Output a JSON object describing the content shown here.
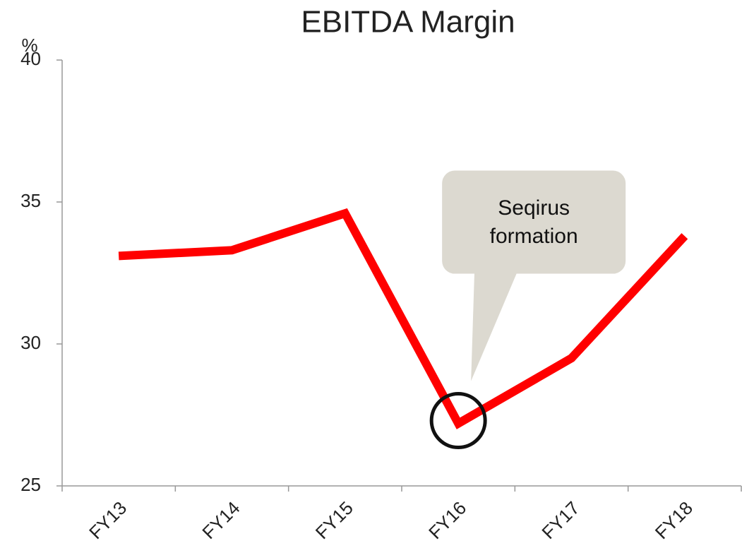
{
  "chart_data": {
    "type": "line",
    "title": "EBITDA Margin",
    "y_label": "%",
    "categories": [
      "FY13",
      "FY14",
      "FY15",
      "FY16",
      "FY17",
      "FY18"
    ],
    "series": [
      {
        "name": "EBITDA Margin",
        "color": "#ff0000",
        "values": [
          33.1,
          33.3,
          34.6,
          27.2,
          29.5,
          33.8
        ]
      }
    ],
    "ylim": [
      25,
      40
    ],
    "yticks": [
      25,
      30,
      35,
      40
    ],
    "grid": false,
    "annotation": {
      "text": "Seqirus formation"
    }
  }
}
